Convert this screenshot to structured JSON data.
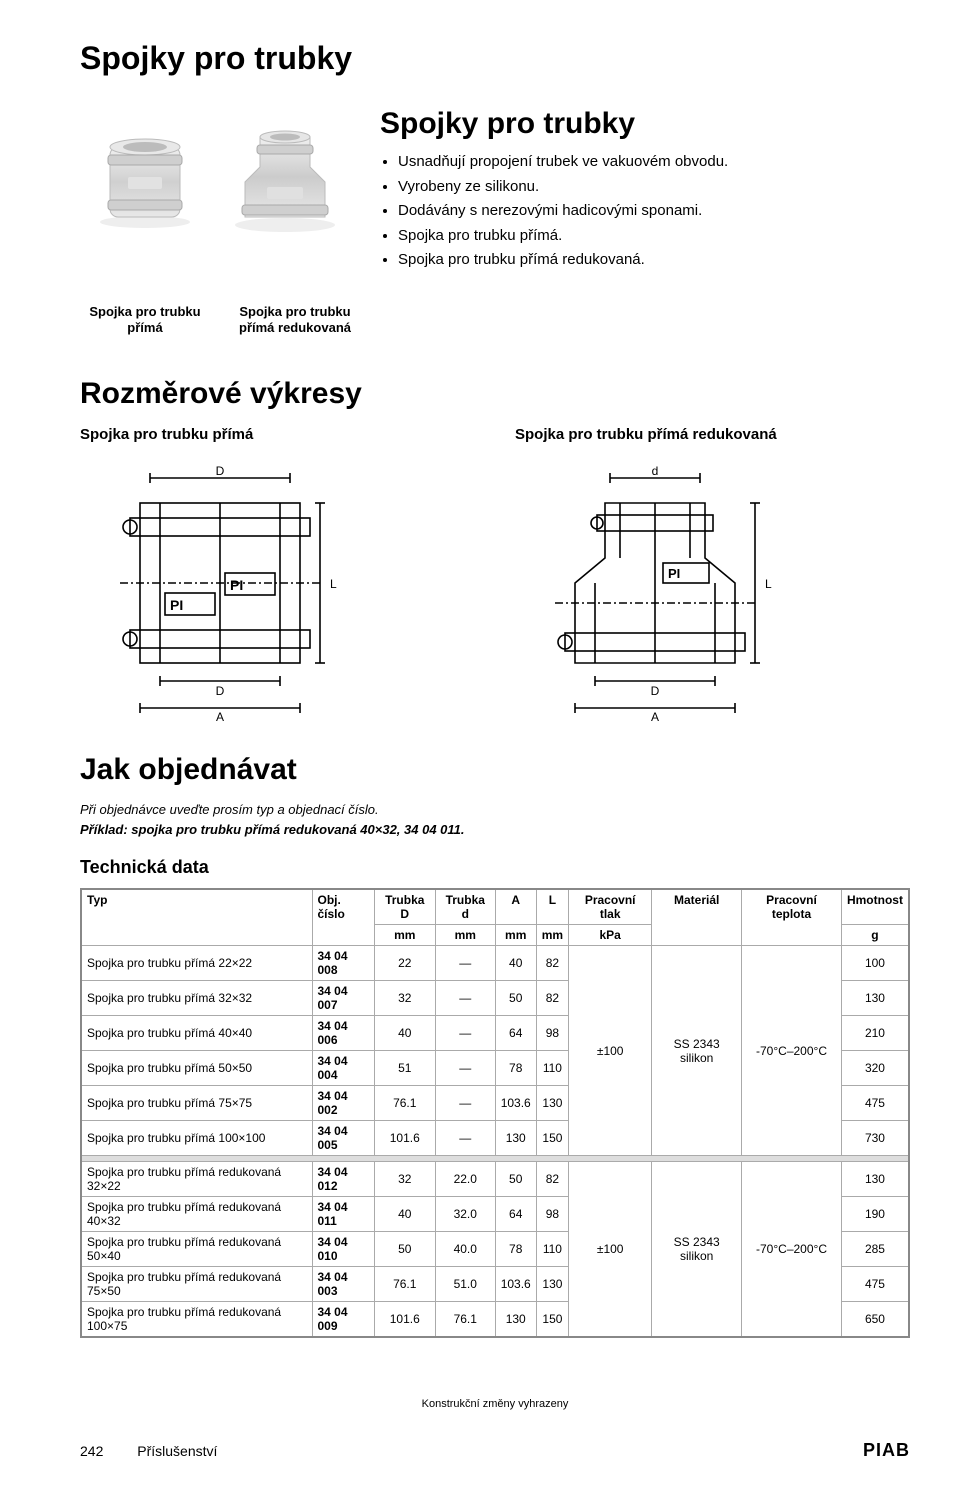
{
  "page_title": "Spojky pro trubky",
  "intro": {
    "heading": "Spojky pro trubky",
    "bullets": [
      "Usnadňují propojení trubek ve vakuovém obvodu.",
      "Vyrobeny ze silikonu.",
      "Dodávány s nerezovými hadicovými sponami.",
      "Spojka pro trubku přímá.",
      "Spojka pro trubku přímá redukovaná."
    ]
  },
  "captions": {
    "left": "Spojka pro trubku přímá",
    "right": "Spojka pro trubku přímá redukovaná"
  },
  "drawings_heading": "Rozměrové výkresy",
  "drawing_left_title": "Spojka pro trubku přímá",
  "drawing_right_title": "Spojka pro trubku přímá redukovaná",
  "order_heading": "Jak objednávat",
  "order_note1": "Při objednávce uveďte prosím typ a objednací číslo.",
  "order_note2": "Příklad: spojka pro trubku přímá redukovaná 40×32, 34 04 011.",
  "techdata_heading": "Technická data",
  "table": {
    "headers": {
      "typ": "Typ",
      "obj": "Obj. číslo",
      "D": "Trubka D",
      "D_unit": "mm",
      "d": "Trubka d",
      "d_unit": "mm",
      "A": "A",
      "A_unit": "mm",
      "L": "L",
      "L_unit": "mm",
      "tlak": "Pracovní tlak",
      "tlak_unit": "kPa",
      "material": "Materiál",
      "teplota": "Pracovní teplota",
      "hmotnost": "Hmotnost",
      "hmotnost_unit": "g"
    },
    "group1": {
      "tlak": "±100",
      "material": "SS 2343 silikon",
      "teplota": "-70°C–200°C",
      "rows": [
        {
          "typ": "Spojka pro trubku přímá 22×22",
          "obj": "34 04 008",
          "D": "22",
          "d": "—",
          "A": "40",
          "L": "82",
          "g": "100"
        },
        {
          "typ": "Spojka pro trubku přímá 32×32",
          "obj": "34 04 007",
          "D": "32",
          "d": "—",
          "A": "50",
          "L": "82",
          "g": "130"
        },
        {
          "typ": "Spojka pro trubku přímá 40×40",
          "obj": "34 04 006",
          "D": "40",
          "d": "—",
          "A": "64",
          "L": "98",
          "g": "210"
        },
        {
          "typ": "Spojka pro trubku přímá 50×50",
          "obj": "34 04 004",
          "D": "51",
          "d": "—",
          "A": "78",
          "L": "110",
          "g": "320"
        },
        {
          "typ": "Spojka pro trubku přímá 75×75",
          "obj": "34 04 002",
          "D": "76.1",
          "d": "—",
          "A": "103.6",
          "L": "130",
          "g": "475"
        },
        {
          "typ": "Spojka pro trubku přímá 100×100",
          "obj": "34 04 005",
          "D": "101.6",
          "d": "—",
          "A": "130",
          "L": "150",
          "g": "730"
        }
      ]
    },
    "group2": {
      "tlak": "±100",
      "material": "SS 2343 silikon",
      "teplota": "-70°C–200°C",
      "rows": [
        {
          "typ": "Spojka pro trubku přímá redukovaná 32×22",
          "obj": "34 04 012",
          "D": "32",
          "d": "22.0",
          "A": "50",
          "L": "82",
          "g": "130"
        },
        {
          "typ": "Spojka pro trubku přímá redukovaná 40×32",
          "obj": "34 04 011",
          "D": "40",
          "d": "32.0",
          "A": "64",
          "L": "98",
          "g": "190"
        },
        {
          "typ": "Spojka pro trubku přímá redukovaná 50×40",
          "obj": "34 04 010",
          "D": "50",
          "d": "40.0",
          "A": "78",
          "L": "110",
          "g": "285"
        },
        {
          "typ": "Spojka pro trubku přímá redukovaná 75×50",
          "obj": "34 04 003",
          "D": "76.1",
          "d": "51.0",
          "A": "103.6",
          "L": "130",
          "g": "475"
        },
        {
          "typ": "Spojka pro trubku přímá redukovaná 100×75",
          "obj": "34 04 009",
          "D": "101.6",
          "d": "76.1",
          "A": "130",
          "L": "150",
          "g": "650"
        }
      ]
    }
  },
  "footer_note": "Konstrukční změny vyhrazeny",
  "page_number": "242",
  "page_label": "Příslušenství",
  "logo_text": "PIAB",
  "colors": {
    "text": "#000000",
    "border": "#888888",
    "sep_bg": "#dddddd",
    "svg_stroke": "#000000",
    "photo_grey": "#d8d8d8"
  }
}
